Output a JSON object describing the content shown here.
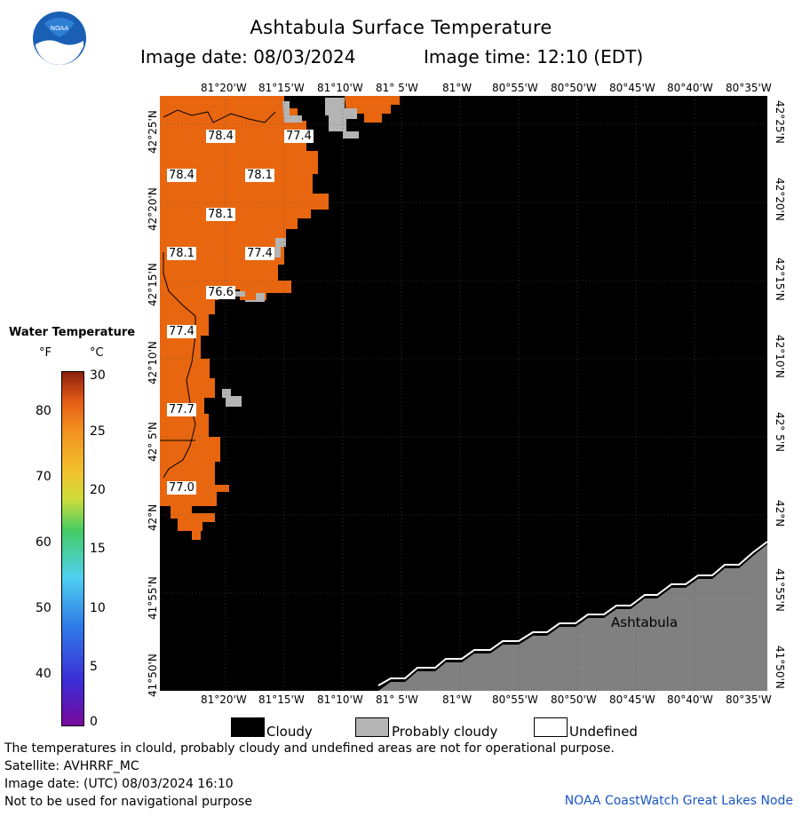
{
  "header": {
    "title": "Ashtabula Surface Temperature",
    "image_date_label": "Image date: 08/03/2024",
    "image_time_label": "Image time: 12:10 (EDT)"
  },
  "colors": {
    "water_orange": "#e8660f",
    "cloudy": "#000000",
    "probably_cloudy": "#b4b4b4",
    "land": "#808080",
    "noaa_blue": "#1a5fb4"
  },
  "map": {
    "lon_ticks": [
      "81°20'W",
      "81°15'W",
      "81°10'W",
      "81° 5'W",
      "81°W",
      "80°55'W",
      "80°50'W",
      "80°45'W",
      "80°40'W",
      "80°35'W"
    ],
    "lat_ticks": [
      "42°25'N",
      "42°20'N",
      "42°15'N",
      "42°10'N",
      "42° 5'N",
      "42°N",
      "41°55'N",
      "41°50'N"
    ],
    "city_label": "Ashtabula",
    "temperature_labels": [
      "78.4",
      "77.4",
      "78.4",
      "78.1",
      "78.1",
      "78.1",
      "77.4",
      "76.6",
      "77.4",
      "77.7",
      "77.0"
    ]
  },
  "scale": {
    "title": "Water Temperature",
    "f_header": "°F",
    "c_header": "°C",
    "fahrenheit_ticks": [
      "80",
      "70",
      "60",
      "50",
      "40"
    ],
    "celsius_ticks": [
      "30",
      "25",
      "20",
      "15",
      "10",
      "5",
      "0"
    ]
  },
  "legend": {
    "cloudy": "Cloudy",
    "probably_cloudy": "Probably cloudy",
    "undefined": "Undefined"
  },
  "footer": {
    "line1": "The temperatures in clould, probably cloudy and undefined areas are not for operational purpose.",
    "line2": "Satellite: AVHRRF_MC",
    "line3": "Image date: (UTC) 08/03/2024  16:10",
    "line4": "Not to be used for navigational purpose",
    "credit": "NOAA CoastWatch Great Lakes Node"
  }
}
